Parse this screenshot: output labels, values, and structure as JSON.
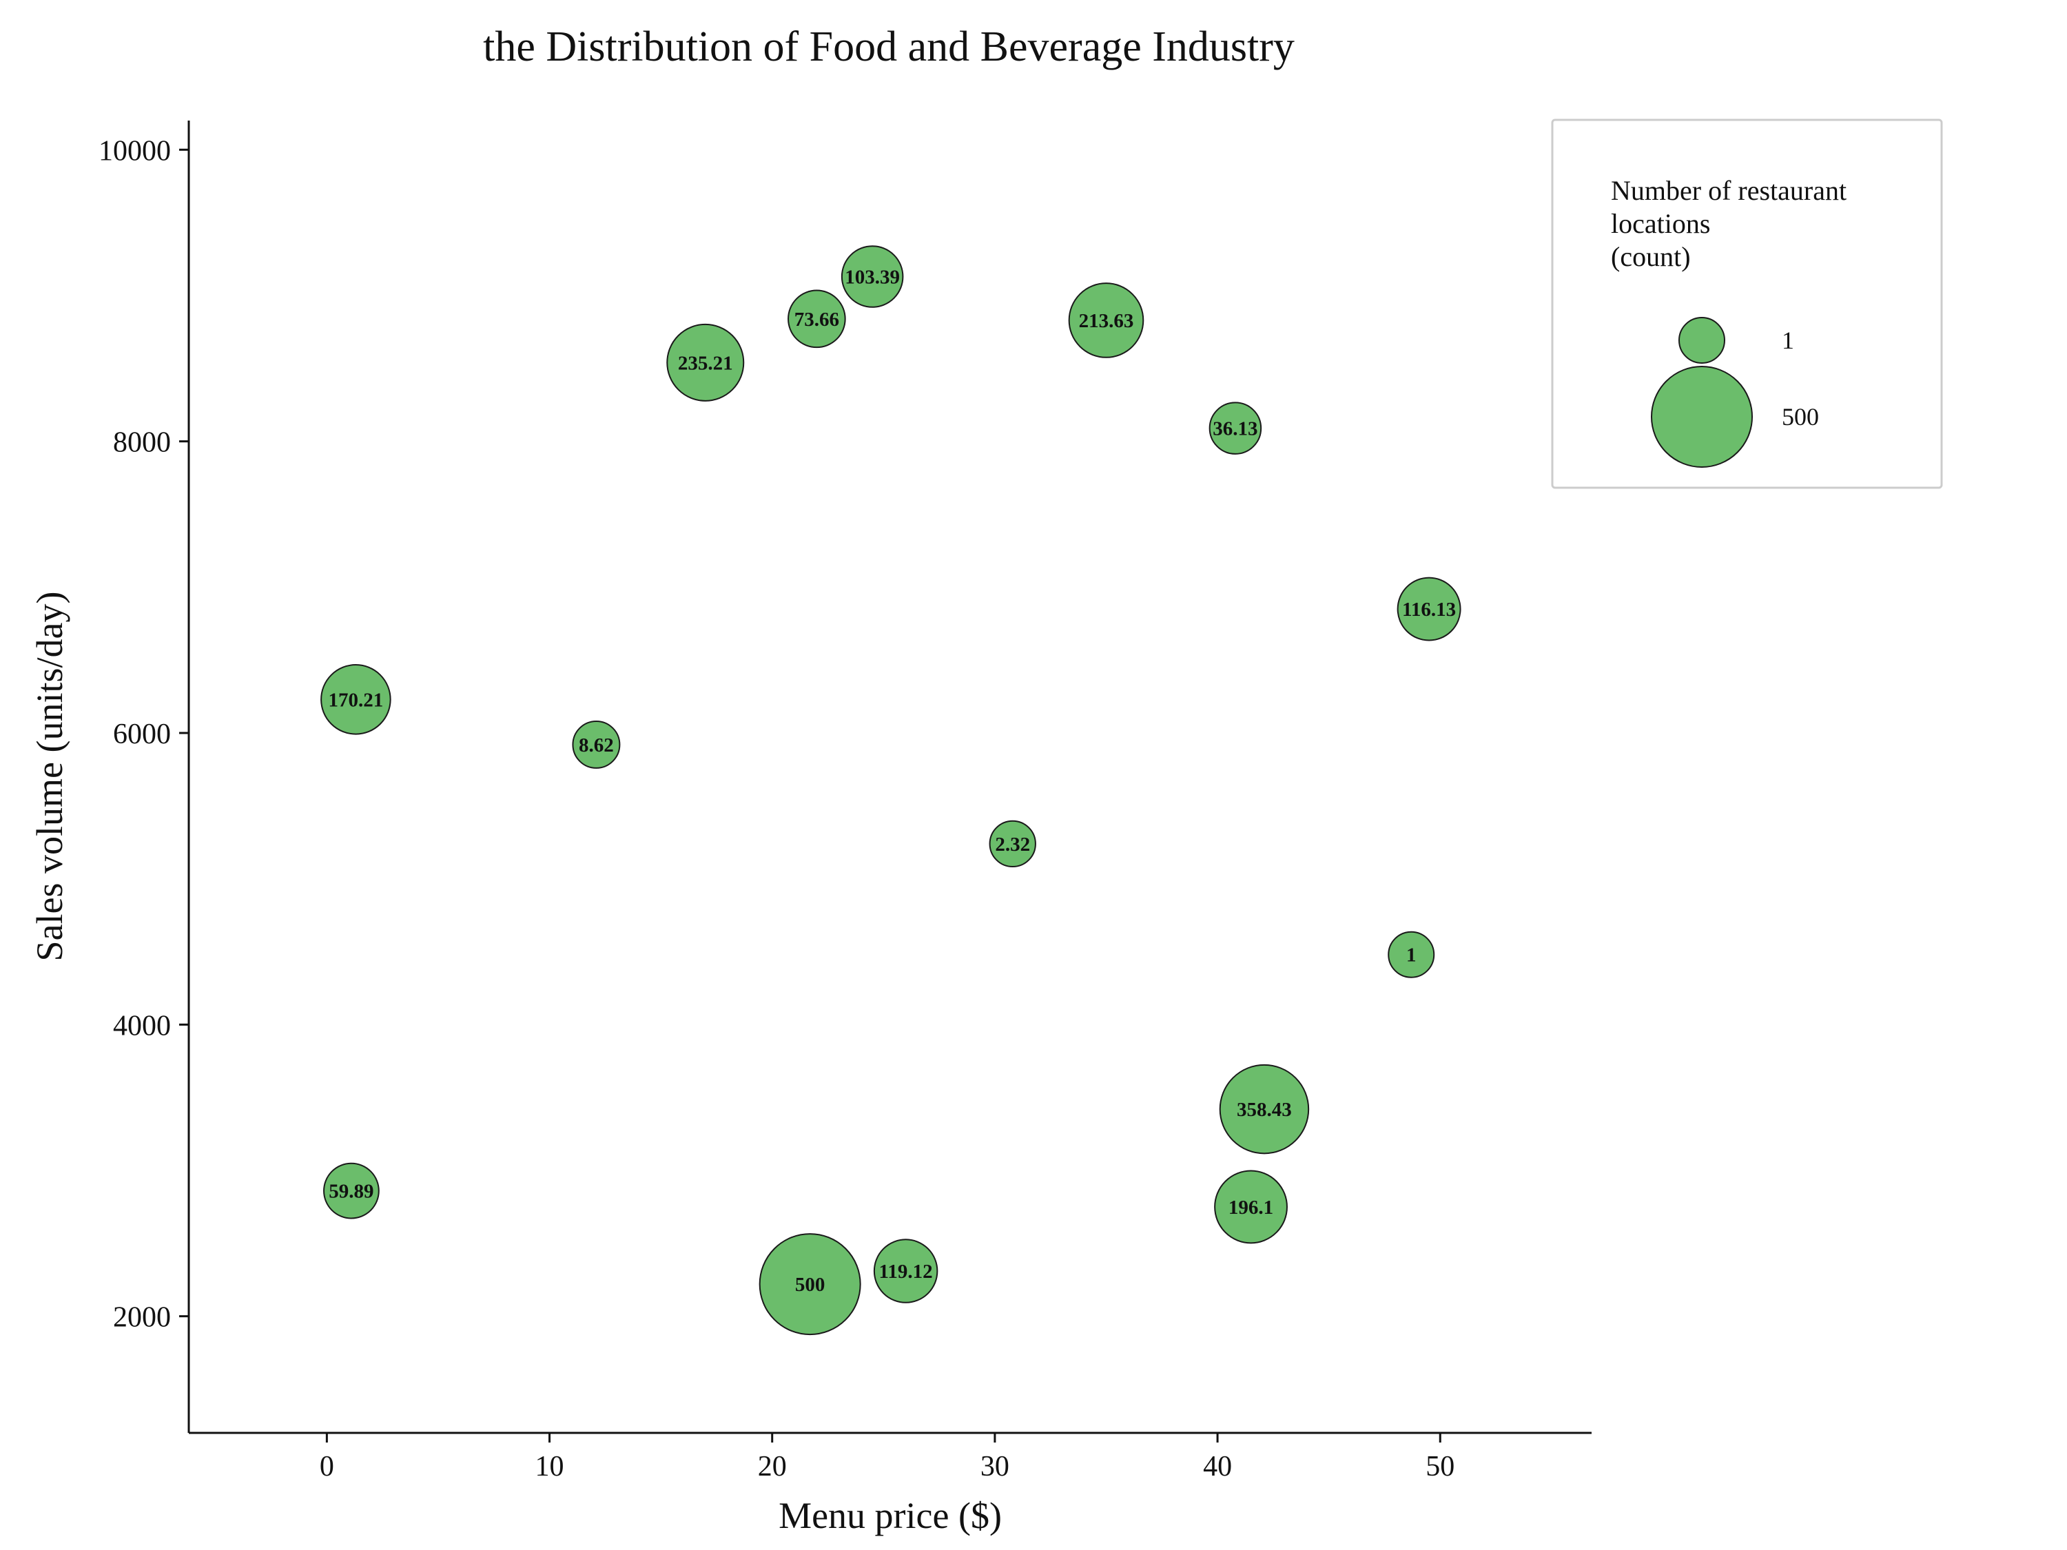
{
  "chart_data": {
    "type": "scatter",
    "title": "the Distribution of Food and Beverage Industry",
    "xlabel": "Menu price ($)",
    "ylabel": "Sales volume (units/day)",
    "xlim": [
      -6.2,
      56.8
    ],
    "ylim": [
      1200,
      10200
    ],
    "xticks": [
      0,
      10,
      20,
      30,
      40,
      50
    ],
    "yticks": [
      2000,
      4000,
      6000,
      8000,
      10000
    ],
    "size_range": [
      1,
      500
    ],
    "grid": false,
    "bubble_color": "#6bbd6b",
    "edge_color": "#1a1a1a",
    "points": [
      {
        "x": 1.3,
        "y": 6230,
        "size": 170.21,
        "label": "170.21"
      },
      {
        "x": 12.1,
        "y": 5920,
        "size": 8.62,
        "label": "8.62"
      },
      {
        "x": 1.1,
        "y": 2860,
        "size": 59.89,
        "label": "59.89"
      },
      {
        "x": 17.0,
        "y": 8540,
        "size": 235.21,
        "label": "235.21"
      },
      {
        "x": 22.0,
        "y": 8840,
        "size": 73.66,
        "label": "73.66"
      },
      {
        "x": 24.5,
        "y": 9130,
        "size": 103.39,
        "label": "103.39"
      },
      {
        "x": 35.0,
        "y": 8830,
        "size": 213.63,
        "label": "213.63"
      },
      {
        "x": 40.8,
        "y": 8090,
        "size": 36.13,
        "label": "36.13"
      },
      {
        "x": 49.5,
        "y": 6850,
        "size": 116.13,
        "label": "116.13"
      },
      {
        "x": 30.8,
        "y": 5240,
        "size": 2.32,
        "label": "2.32"
      },
      {
        "x": 48.7,
        "y": 4480,
        "size": 1,
        "label": "1"
      },
      {
        "x": 42.1,
        "y": 3420,
        "size": 358.43,
        "label": "358.43"
      },
      {
        "x": 41.5,
        "y": 2750,
        "size": 196.1,
        "label": "196.1"
      },
      {
        "x": 21.7,
        "y": 2220,
        "size": 500,
        "label": "500"
      },
      {
        "x": 26.0,
        "y": 2310,
        "size": 119.12,
        "label": "119.12"
      }
    ],
    "legend": {
      "title_lines": [
        "Number of restaurant",
        "locations",
        "(count)"
      ],
      "entries": [
        {
          "size": 1,
          "label": "1"
        },
        {
          "size": 500,
          "label": "500"
        }
      ],
      "position": "top-right"
    }
  }
}
